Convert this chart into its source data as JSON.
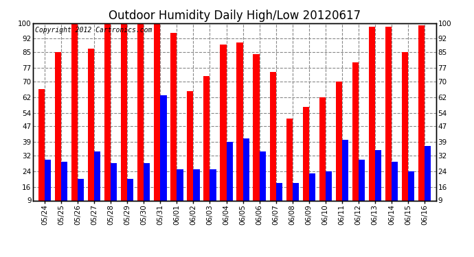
{
  "title": "Outdoor Humidity Daily High/Low 20120617",
  "copyright": "Copyright 2012 Cartronics.com",
  "categories": [
    "05/24",
    "05/25",
    "05/26",
    "05/27",
    "05/28",
    "05/29",
    "05/30",
    "05/31",
    "06/01",
    "06/02",
    "06/03",
    "06/04",
    "06/05",
    "06/06",
    "06/07",
    "06/08",
    "06/09",
    "06/10",
    "06/11",
    "06/12",
    "06/13",
    "06/14",
    "06/15",
    "06/16"
  ],
  "high": [
    66,
    85,
    100,
    87,
    100,
    100,
    100,
    100,
    95,
    65,
    73,
    89,
    90,
    84,
    75,
    51,
    57,
    62,
    70,
    80,
    98,
    98,
    85,
    99
  ],
  "low": [
    30,
    29,
    20,
    34,
    28,
    20,
    28,
    63,
    25,
    25,
    25,
    39,
    41,
    34,
    18,
    18,
    23,
    24,
    40,
    30,
    35,
    29,
    24,
    37
  ],
  "high_color": "#ff0000",
  "low_color": "#0000ff",
  "bg_color": "#ffffff",
  "grid_color": "#888888",
  "yticks": [
    9,
    16,
    24,
    32,
    39,
    47,
    54,
    62,
    70,
    77,
    85,
    92,
    100
  ],
  "ylim_min": 9,
  "ylim_max": 100,
  "bar_width": 0.38,
  "title_fontsize": 12,
  "tick_fontsize": 7.5,
  "copyright_fontsize": 7
}
